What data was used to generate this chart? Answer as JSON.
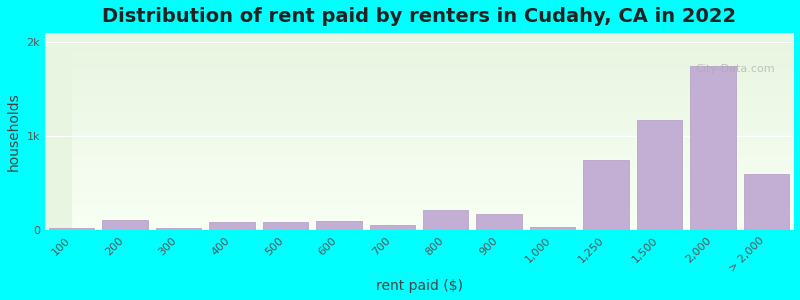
{
  "title": "Distribution of rent paid by renters in Cudahy, CA in 2022",
  "xlabel": "rent paid ($)",
  "ylabel": "households",
  "categories": [
    "100",
    "200",
    "300",
    "400",
    "500",
    "600",
    "700",
    "800",
    "900",
    "1,000",
    "1,250",
    "1,500",
    "2,000",
    "> 2,000"
  ],
  "values": [
    25,
    110,
    20,
    90,
    90,
    95,
    50,
    210,
    175,
    30,
    750,
    1175,
    1750,
    600
  ],
  "bar_color": "#c4afd4",
  "bar_edge_color": "#b09ac0",
  "background_color": "#00ffff",
  "plot_bg_top": "#e8f5e0",
  "plot_bg_bottom": "#f5fff0",
  "ytick_labels": [
    "0",
    "1k",
    "2k"
  ],
  "ytick_values": [
    0,
    1000,
    2000
  ],
  "ylim": [
    0,
    2100
  ],
  "title_fontsize": 14,
  "axis_label_fontsize": 10,
  "tick_fontsize": 8,
  "watermark_text": "City-Data.com"
}
